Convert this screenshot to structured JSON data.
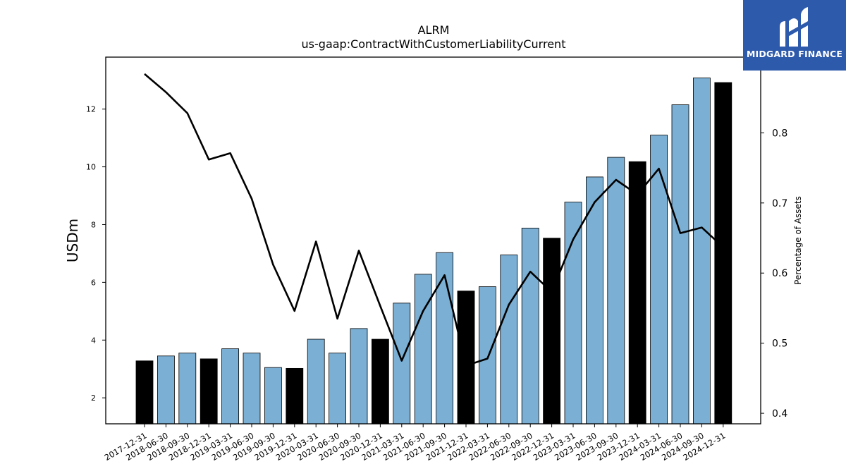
{
  "chart_data": {
    "type": "bar",
    "title": "ALRM",
    "subtitle": "us-gaap:ContractWithCustomerLiabilityCurrent",
    "ylabel": "USDm",
    "y2label": "Percentage of Assets",
    "categories": [
      "2017-12-31",
      "2018-06-30",
      "2018-09-30",
      "2018-12-31",
      "2019-03-31",
      "2019-06-30",
      "2019-09-30",
      "2019-12-31",
      "2020-03-31",
      "2020-06-30",
      "2020-09-30",
      "2020-12-31",
      "2021-03-31",
      "2021-06-30",
      "2021-09-30",
      "2021-12-31",
      "2022-03-31",
      "2022-06-30",
      "2022-09-30",
      "2022-12-31",
      "2023-03-31",
      "2023-06-30",
      "2023-09-30",
      "2023-12-31",
      "2024-03-31",
      "2024-06-30",
      "2024-09-30",
      "2024-12-31"
    ],
    "series": [
      {
        "type": "bar",
        "axis": "left",
        "values": [
          3.28,
          3.45,
          3.55,
          3.35,
          3.7,
          3.55,
          3.05,
          3.02,
          4.03,
          3.55,
          4.4,
          4.03,
          5.28,
          6.28,
          7.03,
          5.7,
          5.85,
          6.95,
          7.88,
          7.53,
          8.78,
          9.65,
          10.33,
          10.18,
          11.1,
          12.15,
          13.08,
          12.92
        ]
      },
      {
        "type": "line",
        "axis": "right",
        "values": [
          0.884,
          0.858,
          0.828,
          0.762,
          0.771,
          0.706,
          0.612,
          0.546,
          0.645,
          0.535,
          0.632,
          0.553,
          0.475,
          0.546,
          0.597,
          0.468,
          0.478,
          0.555,
          0.602,
          0.573,
          0.648,
          0.701,
          0.733,
          0.712,
          0.749,
          0.657,
          0.665,
          0.637
        ]
      }
    ],
    "highlight_indices": [
      0,
      3,
      7,
      11,
      15,
      19,
      23,
      27
    ],
    "ylim": [
      1.1,
      13.8
    ],
    "y2lim": [
      0.385,
      0.908
    ],
    "yticks": [
      2,
      4,
      6,
      8,
      10,
      12
    ],
    "y2ticks": [
      0.4,
      0.5,
      0.6,
      0.7,
      0.8
    ],
    "colors": {
      "bar": "#7bafd4",
      "bar_highlight": "#000000",
      "line": "#000000",
      "bar_edge": "#000000"
    }
  },
  "logo": {
    "text": "MIDGARD FINANCE",
    "icon": "midgard-logo-icon"
  }
}
